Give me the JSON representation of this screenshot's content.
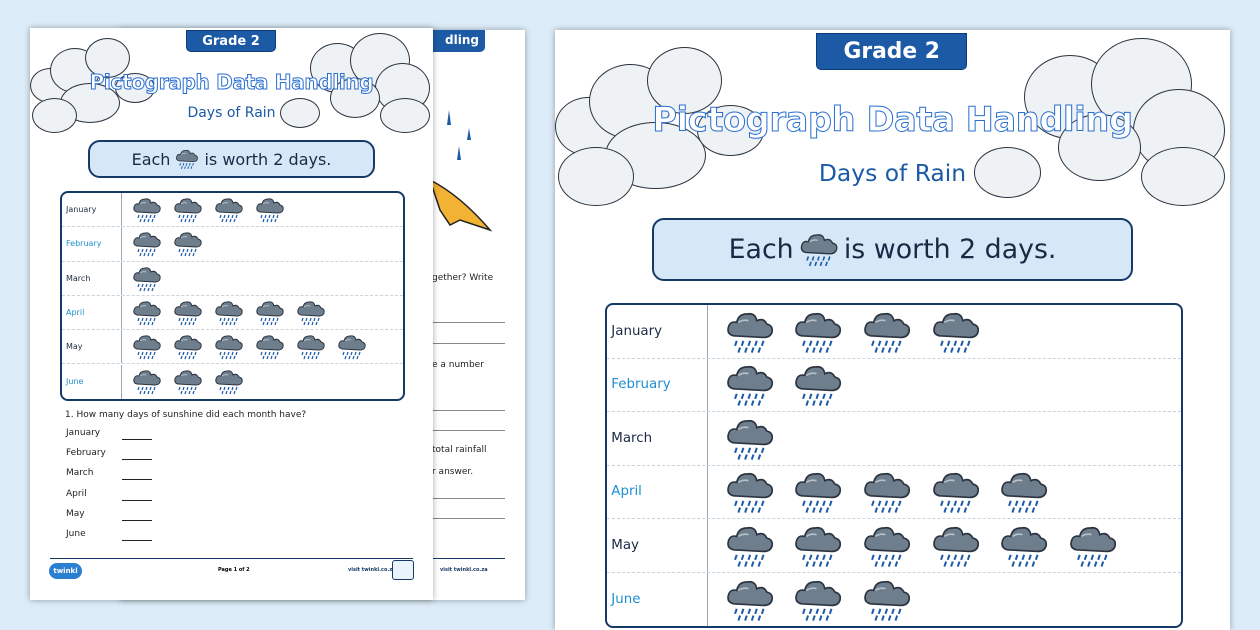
{
  "sheet": {
    "grade": "Grade 2",
    "title": "Pictograph Data Handling",
    "subtitle": "Days of Rain",
    "key_prefix": "Each",
    "key_suffix": "is worth 2 days.",
    "key_icon": "rain-cloud-icon",
    "rows": [
      {
        "month": "January",
        "count": 4,
        "color": "#1a2a44"
      },
      {
        "month": "February",
        "count": 2,
        "color": "#1e8fd0"
      },
      {
        "month": "March",
        "count": 1,
        "color": "#1a2a44"
      },
      {
        "month": "April",
        "count": 5,
        "color": "#1e8fd0"
      },
      {
        "month": "May",
        "count": 6,
        "color": "#1a2a44"
      },
      {
        "month": "June",
        "count": 3,
        "color": "#1e8fd0"
      }
    ],
    "question": "1.  How many days of sunshine did each month have?",
    "answer_months": [
      "January",
      "February",
      "March",
      "April",
      "May",
      "June"
    ],
    "logo": "twinkl",
    "page": "Page 1 of 2",
    "site": "visit twinkl.co.za"
  },
  "back": {
    "badge_fragment": "dling",
    "fragments": [
      "gether? Write",
      "e a number",
      "total rainfall",
      "r answer."
    ],
    "site": "visit twinkl.co.za"
  },
  "colors": {
    "accent": "#1c5aa6",
    "background": "#dcecf8",
    "cloud": "#5c6b78"
  }
}
